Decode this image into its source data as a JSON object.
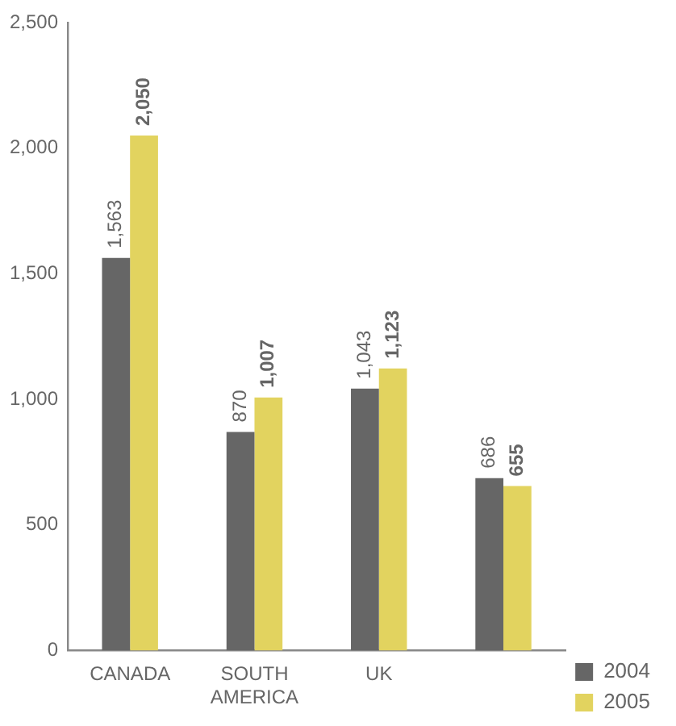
{
  "chart_data": {
    "type": "bar",
    "categories": [
      "CANADA",
      "SOUTH AMERICA",
      "UK",
      null
    ],
    "series": [
      {
        "name": "2004",
        "color": "#666666",
        "values": [
          1563,
          870,
          1043,
          686
        ],
        "value_labels": [
          "1,563",
          "870",
          "1,043",
          "686"
        ]
      },
      {
        "name": "2005",
        "color": "#e2d35f",
        "values": [
          2050,
          1007,
          1123,
          655
        ],
        "value_labels": [
          "2,050",
          "1,007",
          "1,123",
          "655"
        ]
      }
    ],
    "ylim": [
      0,
      2500
    ],
    "yticks": [
      0,
      500,
      {
        "value": 1000,
        "label": "1,000"
      },
      {
        "value": 1500,
        "label": "1,500"
      },
      {
        "value": 2000,
        "label": "2,000"
      },
      {
        "value": 2500,
        "label": "2,500"
      }
    ],
    "grid": false,
    "legend": "bottom right"
  }
}
